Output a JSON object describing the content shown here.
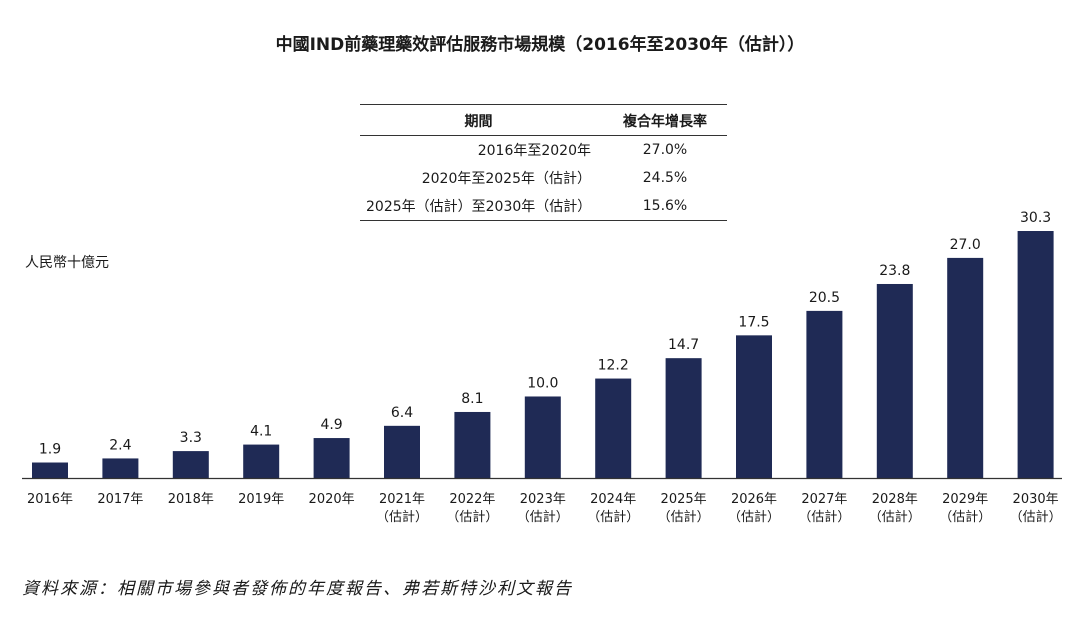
{
  "title": "中國IND前藥理藥效評估服務市場規模（2016年至2030年（估計））",
  "cagr_table": {
    "headers": {
      "period": "期間",
      "rate": "複合年增長率"
    },
    "rows": [
      {
        "period": "2016年至2020年",
        "rate": "27.0%"
      },
      {
        "period": "2020年至2025年（估計）",
        "rate": "24.5%"
      },
      {
        "period": "2025年（估計）至2030年（估計）",
        "rate": "15.6%"
      }
    ]
  },
  "unit_label": "人民幣十億元",
  "source": "資料來源：相關市場參與者發佈的年度報告、弗若斯特沙利文報告",
  "colors": {
    "bar": "#1f2a55",
    "axis": "#333333"
  },
  "chart_data": {
    "type": "bar",
    "title": "中國IND前藥理藥效評估服務市場規模（2016年至2030年（估計））",
    "ylabel": "人民幣十億元",
    "ylim": [
      0,
      30.3
    ],
    "grid": false,
    "categories": [
      {
        "year": "2016年",
        "note": ""
      },
      {
        "year": "2017年",
        "note": ""
      },
      {
        "year": "2018年",
        "note": ""
      },
      {
        "year": "2019年",
        "note": ""
      },
      {
        "year": "2020年",
        "note": ""
      },
      {
        "year": "2021年",
        "note": "（估計）"
      },
      {
        "year": "2022年",
        "note": "（估計）"
      },
      {
        "year": "2023年",
        "note": "（估計）"
      },
      {
        "year": "2024年",
        "note": "（估計）"
      },
      {
        "year": "2025年",
        "note": "（估計）"
      },
      {
        "year": "2026年",
        "note": "（估計）"
      },
      {
        "year": "2027年",
        "note": "（估計）"
      },
      {
        "year": "2028年",
        "note": "（估計）"
      },
      {
        "year": "2029年",
        "note": "（估計）"
      },
      {
        "year": "2030年",
        "note": "（估計）"
      }
    ],
    "values": [
      1.9,
      2.4,
      3.3,
      4.1,
      4.9,
      6.4,
      8.1,
      10.0,
      12.2,
      14.7,
      17.5,
      20.5,
      23.8,
      27.0,
      30.3
    ],
    "value_labels": [
      "1.9",
      "2.4",
      "3.3",
      "4.1",
      "4.9",
      "6.4",
      "8.1",
      "10.0",
      "12.2",
      "14.7",
      "17.5",
      "20.5",
      "23.8",
      "27.0",
      "30.3"
    ]
  }
}
